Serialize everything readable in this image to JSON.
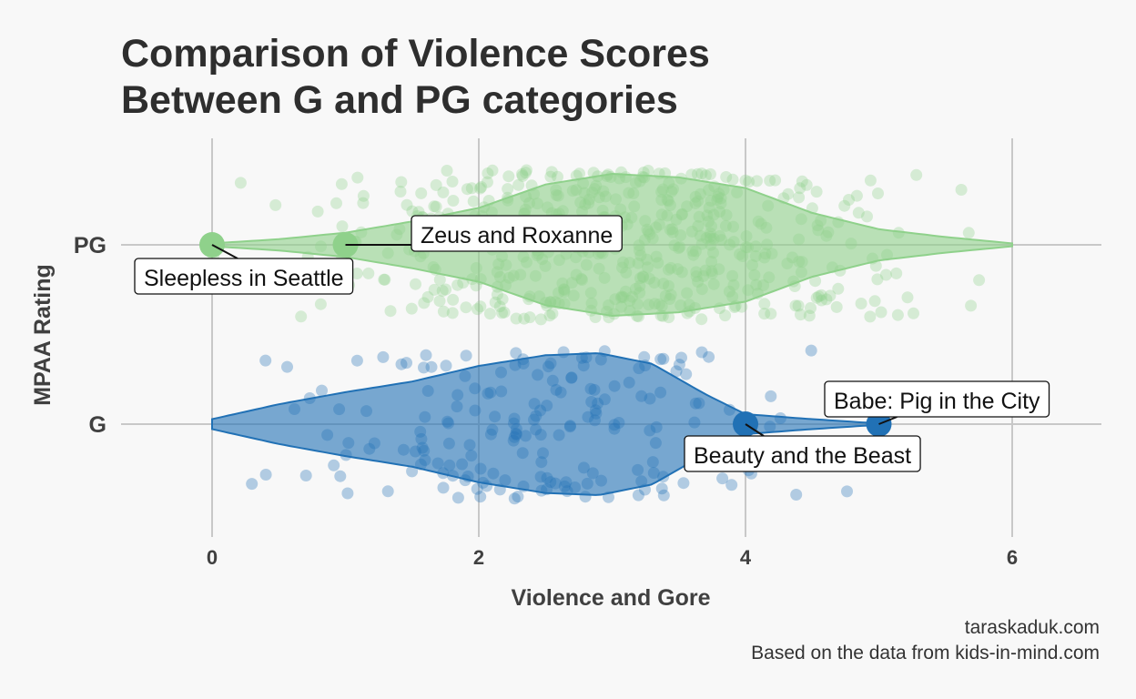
{
  "chart_data": {
    "type": "violin",
    "title_lines": [
      "Comparison of Violence Scores",
      "Between G and PG categories"
    ],
    "xlabel": "Violence and Gore",
    "ylabel": "MPAA Rating",
    "xlim": [
      -0.8,
      6.7
    ],
    "x_ticks": [
      "0",
      "2",
      "4",
      "6"
    ],
    "x_tick_values": [
      0,
      2,
      4,
      6
    ],
    "categories": [
      "G",
      "PG"
    ],
    "grid": true,
    "colors": {
      "G": "#2171b5",
      "PG": "#8fd18b"
    },
    "series": [
      {
        "category": "PG",
        "density": [
          [
            0.0,
            0.02
          ],
          [
            0.5,
            0.08
          ],
          [
            1.0,
            0.17
          ],
          [
            1.5,
            0.33
          ],
          [
            2.0,
            0.52
          ],
          [
            2.5,
            0.85
          ],
          [
            3.0,
            1.0
          ],
          [
            3.5,
            0.95
          ],
          [
            4.0,
            0.8
          ],
          [
            4.5,
            0.45
          ],
          [
            5.0,
            0.22
          ],
          [
            5.5,
            0.11
          ],
          [
            6.0,
            0.02
          ]
        ],
        "highlights": [
          {
            "x": 0,
            "label": "Sleepless in Seattle"
          },
          {
            "x": 1,
            "label": "Zeus and Roxanne"
          }
        ]
      },
      {
        "category": "G",
        "density": [
          [
            0.0,
            0.07
          ],
          [
            0.5,
            0.28
          ],
          [
            1.0,
            0.45
          ],
          [
            1.5,
            0.6
          ],
          [
            2.0,
            0.82
          ],
          [
            2.5,
            0.97
          ],
          [
            2.9,
            1.0
          ],
          [
            3.3,
            0.85
          ],
          [
            3.7,
            0.42
          ],
          [
            4.0,
            0.14
          ],
          [
            4.5,
            0.07
          ],
          [
            5.0,
            0.01
          ]
        ],
        "highlights": [
          {
            "x": 4,
            "label": "Beauty and the Beast"
          },
          {
            "x": 5,
            "label": "Babe: Pig in the City"
          }
        ]
      }
    ]
  },
  "caption": {
    "line1": "taraskaduk.com",
    "line2": "Based on the data from kids-in-mind.com"
  }
}
